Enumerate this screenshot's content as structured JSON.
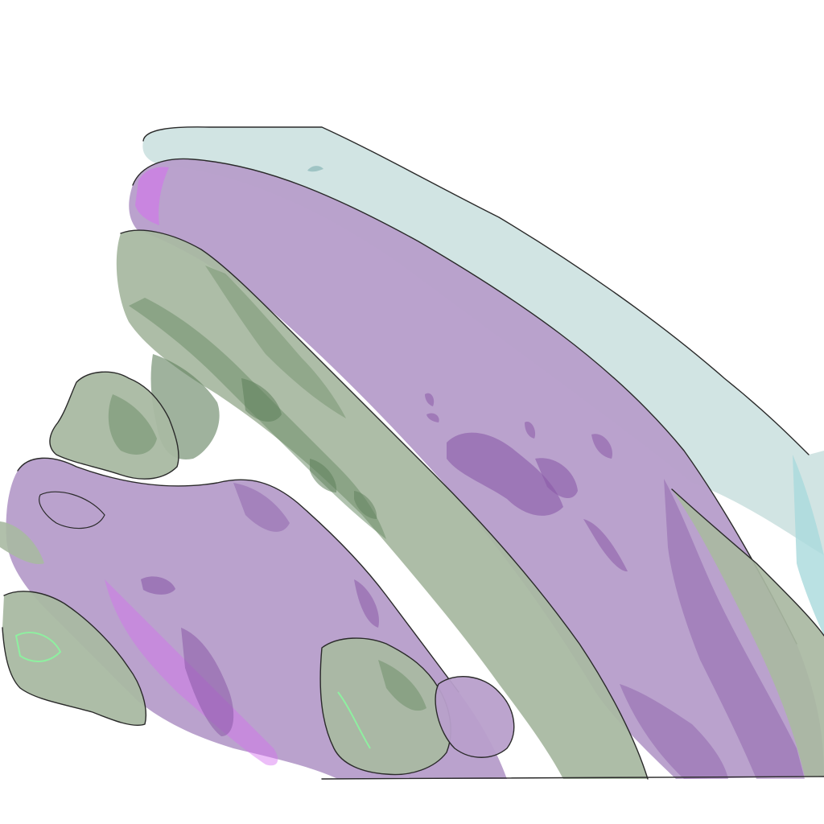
{
  "scene": {
    "background": "#ffffff",
    "colors": {
      "outer_layer": "#cfe3e1",
      "outer_layer_edge": "#a9d9dc",
      "purple_layer": "#b89fcb",
      "purple_dark": "#8a5aa8",
      "purple_highlight": "#d56ef0",
      "green_layer": "#a9b9a2",
      "green_dark": "#6f8f6b",
      "green_highlight": "#8ef0a0",
      "outline": "#2a2a2a"
    }
  }
}
